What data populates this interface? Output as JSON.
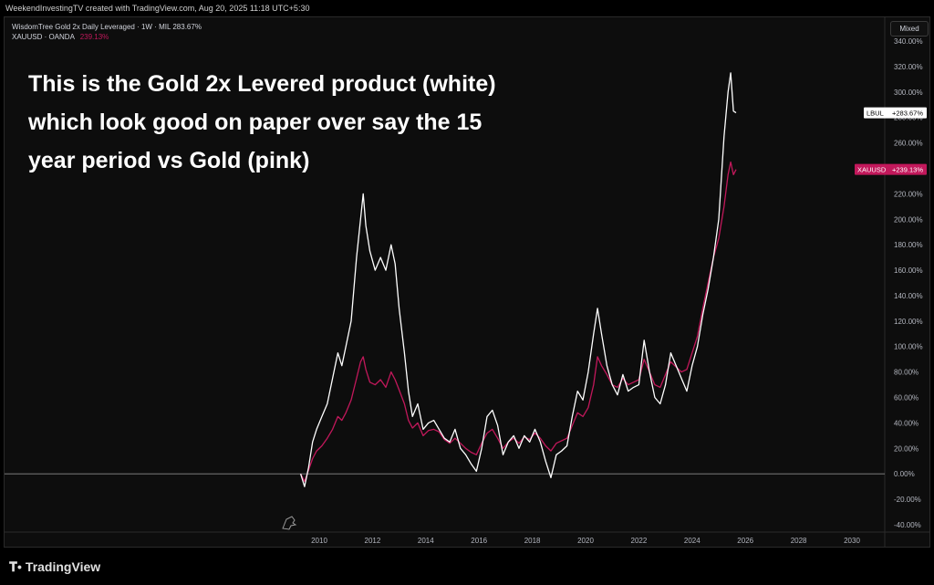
{
  "header": {
    "credit": "WeekendInvestingTV created with TradingView.com, Aug 20, 2025 11:18 UTC+5:30"
  },
  "legend": {
    "main": "WisdomTree Gold 2x Daily Leveraged · 1W · MIL  283.67%",
    "secondary_symbol": "XAUUSD · OANDA",
    "secondary_value": "239.13%"
  },
  "overlay_text": [
    "This is the Gold 2x Levered product (white)",
    "which look good on paper over say the 15",
    "year period vs Gold (pink)"
  ],
  "scale_mode": "Mixed",
  "footer": {
    "brand": "TradingView"
  },
  "colors": {
    "lbul": "#ffffff",
    "xauusd": "#c2185b",
    "background": "#0d0d0d",
    "zero_line": "#8a8a8a"
  },
  "chart_data": {
    "type": "line",
    "y_unit": "%",
    "ylim": [
      -40,
      340
    ],
    "y_ticks": [
      "340.00%",
      "320.00%",
      "300.00%",
      "280.00%",
      "260.00%",
      "240.00%",
      "220.00%",
      "200.00%",
      "180.00%",
      "160.00%",
      "140.00%",
      "120.00%",
      "100.00%",
      "80.00%",
      "60.00%",
      "40.00%",
      "20.00%",
      "0.00%",
      "-20.00%",
      "-40.00%"
    ],
    "x_ticks": [
      "2010",
      "2012",
      "2014",
      "2016",
      "2018",
      "2020",
      "2022",
      "2024",
      "2026",
      "2028",
      "2030"
    ],
    "xlim": [
      2009.5,
      2030.8
    ],
    "grid": false,
    "series": [
      {
        "name": "LBUL",
        "last_label": "+283.67%",
        "points": [
          [
            2009.3,
            0
          ],
          [
            2009.45,
            -10
          ],
          [
            2009.6,
            5
          ],
          [
            2009.75,
            25
          ],
          [
            2009.9,
            35
          ],
          [
            2010.1,
            45
          ],
          [
            2010.3,
            55
          ],
          [
            2010.5,
            75
          ],
          [
            2010.7,
            95
          ],
          [
            2010.85,
            85
          ],
          [
            2011.0,
            100
          ],
          [
            2011.2,
            120
          ],
          [
            2011.4,
            170
          ],
          [
            2011.55,
            200
          ],
          [
            2011.65,
            220
          ],
          [
            2011.75,
            195
          ],
          [
            2011.9,
            175
          ],
          [
            2012.1,
            160
          ],
          [
            2012.3,
            170
          ],
          [
            2012.5,
            160
          ],
          [
            2012.7,
            180
          ],
          [
            2012.85,
            165
          ],
          [
            2013.0,
            130
          ],
          [
            2013.2,
            95
          ],
          [
            2013.35,
            65
          ],
          [
            2013.5,
            45
          ],
          [
            2013.7,
            55
          ],
          [
            2013.9,
            35
          ],
          [
            2014.1,
            40
          ],
          [
            2014.3,
            42
          ],
          [
            2014.5,
            35
          ],
          [
            2014.7,
            28
          ],
          [
            2014.9,
            25
          ],
          [
            2015.1,
            35
          ],
          [
            2015.3,
            20
          ],
          [
            2015.5,
            15
          ],
          [
            2015.7,
            8
          ],
          [
            2015.9,
            2
          ],
          [
            2016.1,
            20
          ],
          [
            2016.3,
            45
          ],
          [
            2016.5,
            50
          ],
          [
            2016.7,
            38
          ],
          [
            2016.9,
            15
          ],
          [
            2017.1,
            25
          ],
          [
            2017.3,
            30
          ],
          [
            2017.5,
            20
          ],
          [
            2017.7,
            30
          ],
          [
            2017.9,
            25
          ],
          [
            2018.1,
            35
          ],
          [
            2018.3,
            25
          ],
          [
            2018.5,
            10
          ],
          [
            2018.7,
            -3
          ],
          [
            2018.9,
            15
          ],
          [
            2019.1,
            18
          ],
          [
            2019.3,
            22
          ],
          [
            2019.5,
            45
          ],
          [
            2019.7,
            65
          ],
          [
            2019.9,
            58
          ],
          [
            2020.1,
            80
          ],
          [
            2020.3,
            110
          ],
          [
            2020.45,
            130
          ],
          [
            2020.6,
            110
          ],
          [
            2020.8,
            85
          ],
          [
            2021.0,
            70
          ],
          [
            2021.2,
            62
          ],
          [
            2021.4,
            78
          ],
          [
            2021.6,
            65
          ],
          [
            2021.8,
            68
          ],
          [
            2022.0,
            70
          ],
          [
            2022.2,
            105
          ],
          [
            2022.4,
            80
          ],
          [
            2022.6,
            60
          ],
          [
            2022.8,
            55
          ],
          [
            2023.0,
            70
          ],
          [
            2023.2,
            95
          ],
          [
            2023.4,
            85
          ],
          [
            2023.6,
            75
          ],
          [
            2023.8,
            65
          ],
          [
            2024.0,
            85
          ],
          [
            2024.2,
            100
          ],
          [
            2024.4,
            125
          ],
          [
            2024.6,
            145
          ],
          [
            2024.8,
            170
          ],
          [
            2025.0,
            200
          ],
          [
            2025.2,
            265
          ],
          [
            2025.35,
            300
          ],
          [
            2025.45,
            315
          ],
          [
            2025.55,
            285
          ],
          [
            2025.65,
            283.67
          ]
        ]
      },
      {
        "name": "XAUUSD",
        "last_label": "+239.13%",
        "points": [
          [
            2009.3,
            0
          ],
          [
            2009.45,
            -6
          ],
          [
            2009.6,
            3
          ],
          [
            2009.75,
            12
          ],
          [
            2009.9,
            18
          ],
          [
            2010.1,
            22
          ],
          [
            2010.3,
            28
          ],
          [
            2010.5,
            35
          ],
          [
            2010.7,
            45
          ],
          [
            2010.85,
            42
          ],
          [
            2011.0,
            48
          ],
          [
            2011.2,
            58
          ],
          [
            2011.4,
            75
          ],
          [
            2011.55,
            88
          ],
          [
            2011.65,
            92
          ],
          [
            2011.75,
            82
          ],
          [
            2011.9,
            72
          ],
          [
            2012.1,
            70
          ],
          [
            2012.3,
            74
          ],
          [
            2012.5,
            68
          ],
          [
            2012.7,
            80
          ],
          [
            2012.85,
            74
          ],
          [
            2013.0,
            66
          ],
          [
            2013.2,
            55
          ],
          [
            2013.35,
            42
          ],
          [
            2013.5,
            36
          ],
          [
            2013.7,
            40
          ],
          [
            2013.9,
            30
          ],
          [
            2014.1,
            34
          ],
          [
            2014.3,
            35
          ],
          [
            2014.5,
            33
          ],
          [
            2014.7,
            27
          ],
          [
            2014.9,
            24
          ],
          [
            2015.1,
            28
          ],
          [
            2015.3,
            24
          ],
          [
            2015.5,
            20
          ],
          [
            2015.7,
            17
          ],
          [
            2015.9,
            15
          ],
          [
            2016.1,
            24
          ],
          [
            2016.3,
            32
          ],
          [
            2016.5,
            35
          ],
          [
            2016.7,
            28
          ],
          [
            2016.9,
            20
          ],
          [
            2017.1,
            25
          ],
          [
            2017.3,
            28
          ],
          [
            2017.5,
            24
          ],
          [
            2017.7,
            29
          ],
          [
            2017.9,
            27
          ],
          [
            2018.1,
            32
          ],
          [
            2018.3,
            28
          ],
          [
            2018.5,
            22
          ],
          [
            2018.7,
            18
          ],
          [
            2018.9,
            24
          ],
          [
            2019.1,
            26
          ],
          [
            2019.3,
            28
          ],
          [
            2019.5,
            38
          ],
          [
            2019.7,
            48
          ],
          [
            2019.9,
            45
          ],
          [
            2020.1,
            52
          ],
          [
            2020.3,
            70
          ],
          [
            2020.45,
            92
          ],
          [
            2020.6,
            85
          ],
          [
            2020.8,
            78
          ],
          [
            2021.0,
            70
          ],
          [
            2021.2,
            68
          ],
          [
            2021.4,
            75
          ],
          [
            2021.6,
            70
          ],
          [
            2021.8,
            72
          ],
          [
            2022.0,
            74
          ],
          [
            2022.2,
            90
          ],
          [
            2022.4,
            80
          ],
          [
            2022.6,
            70
          ],
          [
            2022.8,
            68
          ],
          [
            2023.0,
            78
          ],
          [
            2023.2,
            88
          ],
          [
            2023.4,
            84
          ],
          [
            2023.6,
            80
          ],
          [
            2023.8,
            82
          ],
          [
            2024.0,
            95
          ],
          [
            2024.2,
            108
          ],
          [
            2024.4,
            130
          ],
          [
            2024.6,
            150
          ],
          [
            2024.8,
            170
          ],
          [
            2025.0,
            185
          ],
          [
            2025.2,
            210
          ],
          [
            2025.35,
            235
          ],
          [
            2025.45,
            245
          ],
          [
            2025.55,
            235
          ],
          [
            2025.65,
            239.13
          ]
        ]
      }
    ]
  }
}
